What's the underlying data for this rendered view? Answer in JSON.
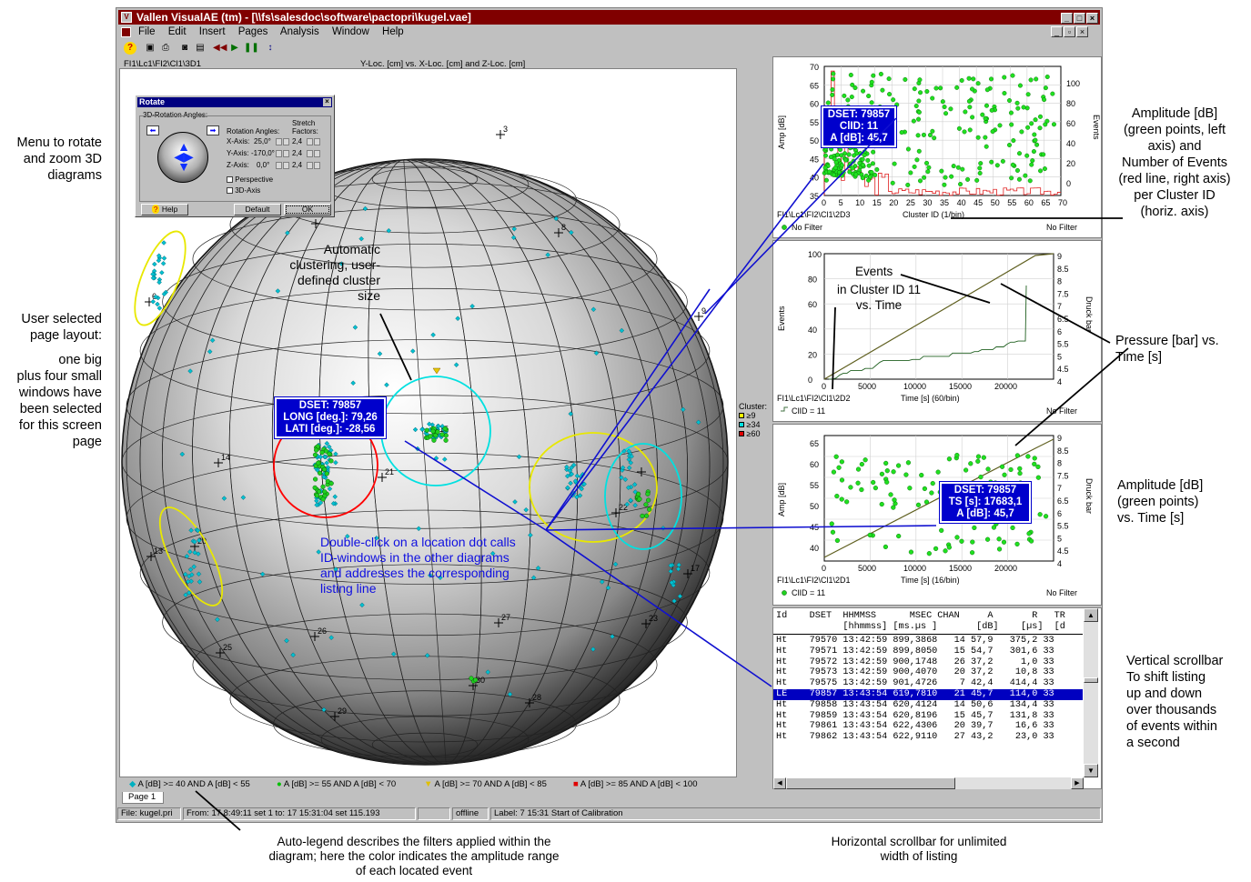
{
  "window": {
    "title": "Vallen VisualAE (tm) - [\\\\fs\\salesdoc\\software\\pactopri\\kugel.vae]",
    "menu": [
      "File",
      "Edit",
      "Insert",
      "Pages",
      "Analysis",
      "Window",
      "Help"
    ],
    "toolbar_icons": [
      "help-icon",
      "save-icon",
      "print-icon",
      "preview-icon",
      "zoom-icon",
      "rewind-icon",
      "play-icon",
      "pause-icon",
      "step-icon"
    ]
  },
  "main_view": {
    "path": "FI1\\Lc1\\FI2\\Cl1\\3D1",
    "title": "Y-Loc. [cm] vs. X-Loc. [cm] and Z-Loc. [cm]",
    "grid_labels": [
      "3",
      "8",
      "6",
      "9",
      "15",
      "14",
      "21",
      "13",
      "20",
      "22",
      "23",
      "25",
      "26",
      "27",
      "30",
      "28",
      "29",
      "17"
    ],
    "cluster_legend": {
      "title": "Cluster:",
      "items": [
        {
          "label": "≥9",
          "color": "#ffff00"
        },
        {
          "label": "≥34",
          "color": "#00e0e0"
        },
        {
          "label": "≥60",
          "color": "#ff0000"
        }
      ]
    },
    "id_box": [
      "DSET: 79857",
      "LONG [deg.]: 79,26",
      "LATI [deg.]: -28,56"
    ],
    "annotation_clustering": [
      "Automatic",
      "clustering, user-",
      "defined cluster",
      "size"
    ],
    "annotation_doubleclick": [
      "Double-click on a location dot calls",
      "ID-windows in the other diagrams",
      "and addresses the corresponding",
      "listing line"
    ],
    "legend": [
      {
        "symbol": "◆",
        "color": "#00b0c0",
        "text": "A [dB] >= 40 AND A [dB] < 55"
      },
      {
        "symbol": "●",
        "color": "#00c000",
        "text": "A [dB] >= 55 AND A [dB] < 70"
      },
      {
        "symbol": "▼",
        "color": "#e0c000",
        "text": "A [dB] >= 70 AND A [dB] < 85"
      },
      {
        "symbol": "■",
        "color": "#e00000",
        "text": "A [dB] >= 85 AND A [dB] < 100"
      }
    ]
  },
  "rotate_dialog": {
    "title": "Rotate",
    "group": "3D-Rotation Angles:",
    "rotation_label": "Rotation Angles:",
    "stretch_label": "Stretch",
    "factors_label": "Factors:",
    "axes": [
      {
        "axis": "X-Axis:",
        "angle": "25,0°",
        "stretch": "2,4"
      },
      {
        "axis": "Y-Axis:",
        "angle": "-170,0°",
        "stretch": "2,4"
      },
      {
        "axis": "Z-Axis:",
        "angle": "0,0°",
        "stretch": "2,4"
      }
    ],
    "perspective": "Perspective",
    "axis3d": "3D-Axis",
    "help": "Help",
    "default": "Default",
    "ok": "OK"
  },
  "charts": {
    "top": {
      "path": "FI1\\Lc1\\FI2\\Cl1\\2D3",
      "xlabel": "Cluster ID (1/bin)",
      "ylabel_left": "Amp [dB]",
      "ylabel_right": "Events",
      "filter_left": "No Filter",
      "filter_right": "No Filter",
      "id_box": [
        "DSET: 79857",
        "ClID: 11",
        "A [dB]: 45,7"
      ],
      "yticks_left": [
        "70",
        "65",
        "60",
        "55",
        "50",
        "45",
        "40",
        "35"
      ],
      "yticks_right": [
        "100",
        "80",
        "60",
        "40",
        "20",
        "0"
      ],
      "xticks": [
        "0",
        "5",
        "10",
        "15",
        "20",
        "25",
        "30",
        "35",
        "40",
        "45",
        "50",
        "55",
        "60",
        "65",
        "70"
      ]
    },
    "middle": {
      "path": "FI1\\Lc1\\FI2\\Cl1\\2D2",
      "xlabel": "Time [s] (60/bin)",
      "ylabel_left": "Events",
      "ylabel_right": "Druck bar",
      "filter_left": "ClID = 11",
      "filter_right": "No Filter",
      "annotation_events": "Events",
      "annotation_cluster": [
        "in Cluster ID 11",
        "vs. Time"
      ],
      "yticks_left": [
        "100",
        "80",
        "60",
        "40",
        "20",
        "0"
      ],
      "yticks_right": [
        "9",
        "8.5",
        "8",
        "7.5",
        "7",
        "6.5",
        "6",
        "5.5",
        "5",
        "4.5",
        "4"
      ],
      "xticks": [
        "0",
        "5000",
        "10000",
        "15000",
        "20000"
      ]
    },
    "bottom": {
      "path": "FI1\\Lc1\\FI2\\Cl1\\2D1",
      "xlabel": "Time [s] (16/bin)",
      "ylabel_left": "Amp [dB]",
      "ylabel_right": "Druck bar",
      "filter_left": "ClID = 11",
      "filter_right": "No Filter",
      "id_box": [
        "DSET: 79857",
        "TS [s]: 17683,1",
        "A [dB]: 45,7"
      ],
      "yticks_left": [
        "65",
        "60",
        "55",
        "50",
        "45",
        "40"
      ],
      "yticks_right": [
        "9",
        "8.5",
        "8",
        "7.5",
        "7",
        "6.5",
        "6",
        "5.5",
        "5",
        "4.5",
        "4"
      ],
      "xticks": [
        "0",
        "5000",
        "10000",
        "15000",
        "20000"
      ]
    }
  },
  "listing": {
    "header1": "Id    DSET  HHMMSS      MSEC CHAN     A       R   TR",
    "header2": "            [hhmmss] [ms.µs ]       [dB]    [µs]  [d",
    "rows": [
      {
        "id": "Ht",
        "text": "Ht    79570 13:42:59 899,3868   14 57,9   375,2 33",
        "selected": false
      },
      {
        "id": "Ht",
        "text": "Ht    79571 13:42:59 899,8050   15 54,7   301,6 33",
        "selected": false
      },
      {
        "id": "Ht",
        "text": "Ht    79572 13:42:59 900,1748   26 37,2     1,0 33",
        "selected": false
      },
      {
        "id": "Ht",
        "text": "Ht    79573 13:42:59 900,4070   20 37,2    10,8 33",
        "selected": false
      },
      {
        "id": "Ht",
        "text": "Ht    79575 13:42:59 901,4726    7 42,4   414,4 33",
        "selected": false
      },
      {
        "id": "LE",
        "text": "LE    79857 13:43:54 619,7810   21 45,7   114,0 33",
        "selected": true
      },
      {
        "id": "Ht",
        "text": "Ht    79858 13:43:54 620,4124   14 50,6   134,4 33",
        "selected": false
      },
      {
        "id": "Ht",
        "text": "Ht    79859 13:43:54 620,8196   15 45,7   131,8 33",
        "selected": false
      },
      {
        "id": "Ht",
        "text": "Ht    79861 13:43:54 622,4306   20 39,7    16,6 33",
        "selected": false
      },
      {
        "id": "Ht",
        "text": "Ht    79862 13:43:54 622,9110   27 43,2    23,0 33",
        "selected": false
      }
    ]
  },
  "page_tab": "Page 1",
  "statusbar": {
    "file": "File: kugel.pri",
    "from": "From: 17  8:49:11 set 1 to: 17 15:31:04 set 115.193",
    "mode": "offline",
    "label": "Label: 7 15:31 Start of Calibration"
  },
  "annotations": {
    "left_rotate": [
      "Menu to rotate",
      "and zoom 3D",
      "diagrams"
    ],
    "left_layout": [
      "User selected",
      "page layout:",
      "one big",
      "plus four small",
      "windows have",
      "been selected",
      "for this screen",
      "page"
    ],
    "right_amp_events": [
      "Amplitude  [dB]",
      "(green points, left",
      "axis) and",
      "Number of Events",
      "(red line, right axis)",
      "per Cluster ID",
      "(horiz. axis)"
    ],
    "right_pressure": [
      "Pressure [bar] vs.",
      "Time  [s]"
    ],
    "right_amp_time": [
      "Amplitude  [dB]",
      "(green points)",
      "vs. Time  [s]"
    ],
    "right_scrollbar": [
      "Vertical scrollbar",
      "To shift listing",
      "up and down",
      "over thousands",
      "of events within",
      "a second"
    ],
    "bottom_legend": [
      "Auto-legend describes the filters applied within the",
      "diagram; here the color indicates the amplitude range",
      "of each located event"
    ],
    "bottom_hscroll": [
      "Horizontal scrollbar for unlimited",
      "width of listing"
    ]
  }
}
